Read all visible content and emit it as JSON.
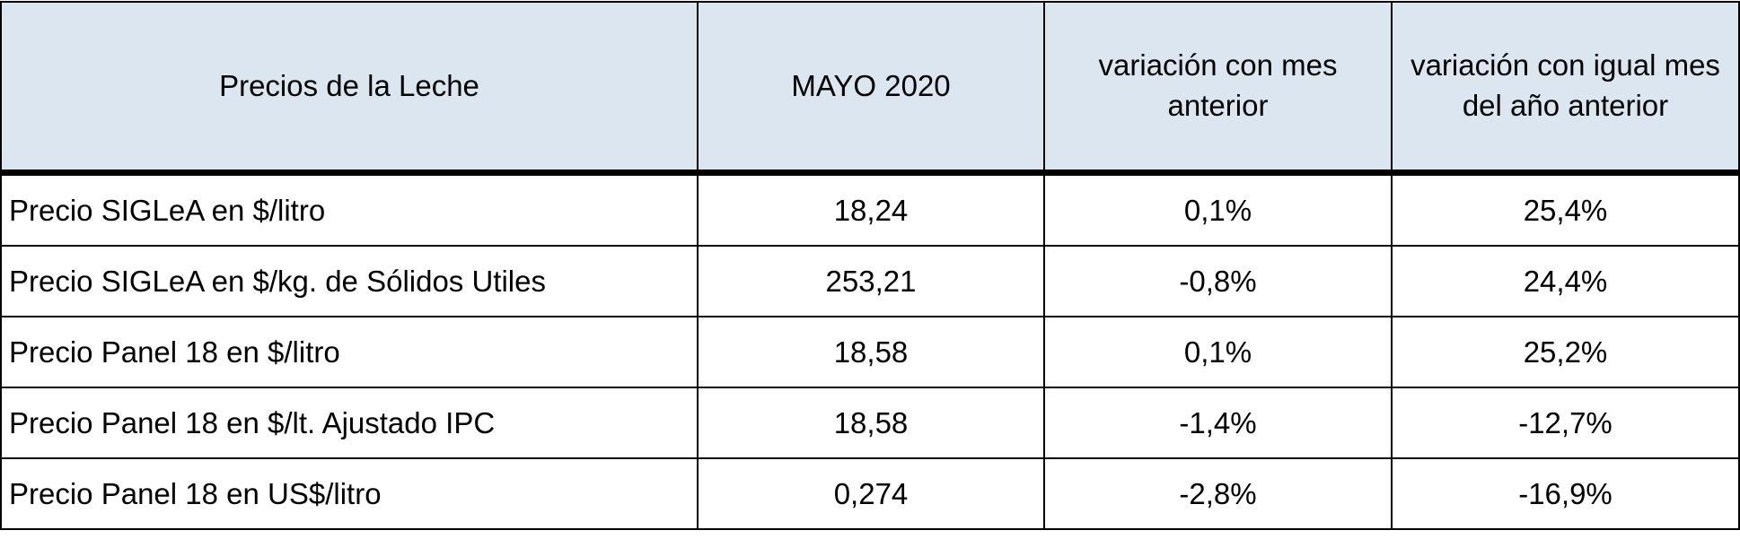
{
  "table": {
    "header": [
      "Precios de la Leche",
      "MAYO 2020",
      "variación con mes anterior",
      "variación con igual mes del año anterior"
    ],
    "rows": [
      [
        "Precio SIGLeA en $/litro",
        "18,24",
        "0,1%",
        "25,4%"
      ],
      [
        "Precio SIGLeA en $/kg. de Sólidos Utiles",
        "253,21",
        "-0,8%",
        "24,4%"
      ],
      [
        "Precio Panel 18 en $/litro",
        "18,58",
        "0,1%",
        "25,2%"
      ],
      [
        "Precio Panel 18 en $/lt. Ajustado IPC",
        "18,58",
        "-1,4%",
        "-12,7%"
      ],
      [
        "Precio Panel 18 en US$/litro",
        "0,274",
        "-2,8%",
        "-16,9%"
      ]
    ]
  }
}
